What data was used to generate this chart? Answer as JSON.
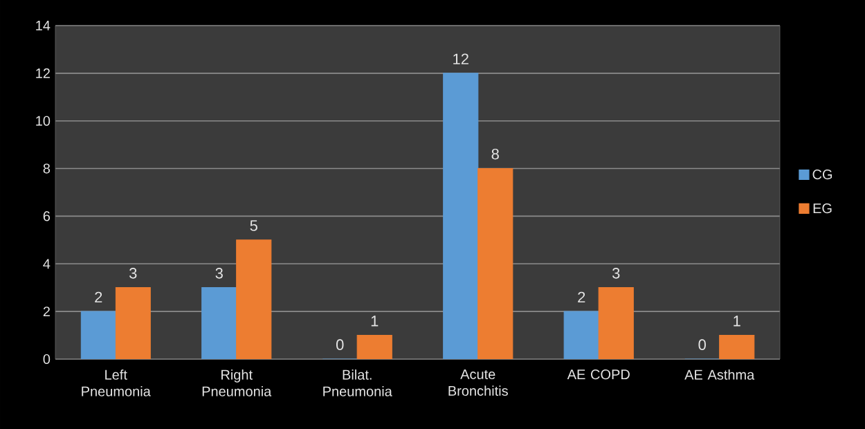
{
  "chart_data": {
    "type": "bar",
    "categories": [
      "Left Pneumonia",
      "Right Pneumonia",
      "Bilat. Pneumonia",
      "Acute Bronchitis",
      "AE COPD",
      "AE Asthma"
    ],
    "series": [
      {
        "name": "CG",
        "color": "#5b9bd5",
        "values": [
          2,
          3,
          0,
          12,
          2,
          0
        ]
      },
      {
        "name": "EG",
        "color": "#ed7d31",
        "values": [
          3,
          5,
          1,
          8,
          3,
          1
        ]
      }
    ],
    "ylim": [
      0,
      14
    ],
    "yticks": [
      0,
      2,
      4,
      6,
      8,
      10,
      12,
      14
    ],
    "grid": "y",
    "legend": "right",
    "data_labels": true
  }
}
